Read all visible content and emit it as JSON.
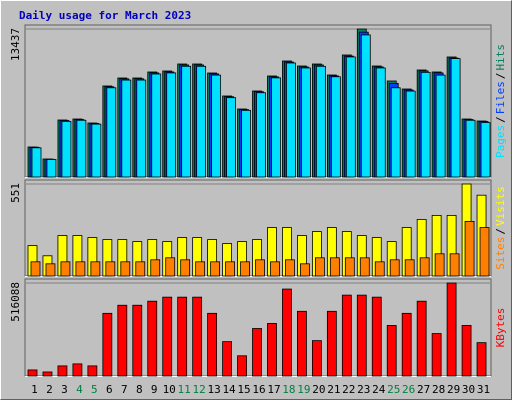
{
  "chart_data": {
    "type": "bar",
    "title": "Daily usage for March 2023",
    "categories": [
      "1",
      "2",
      "3",
      "4",
      "5",
      "6",
      "7",
      "8",
      "9",
      "10",
      "11",
      "12",
      "13",
      "14",
      "15",
      "16",
      "17",
      "18",
      "19",
      "20",
      "21",
      "22",
      "23",
      "24",
      "25",
      "26",
      "27",
      "28",
      "29",
      "30",
      "31"
    ],
    "category_colors": [
      "#000000",
      "#000000",
      "#000000",
      "#008040",
      "#008040",
      "#000000",
      "#000000",
      "#000000",
      "#000000",
      "#000000",
      "#008040",
      "#008040",
      "#000000",
      "#000000",
      "#000000",
      "#000000",
      "#000000",
      "#008040",
      "#008040",
      "#000000",
      "#000000",
      "#000000",
      "#000000",
      "#000000",
      "#008040",
      "#008040",
      "#000000",
      "#000000",
      "#000000",
      "#000000",
      "#000000"
    ],
    "panels": [
      {
        "ylim": [
          0,
          13437
        ],
        "yticks": [
          13437
        ],
        "series": [
          {
            "name": "Hits",
            "color": "#00805c",
            "values": [
              2724,
              1634,
              5176,
              5266,
              4903,
              8263,
              8989,
              8989,
              9534,
              9625,
              10260,
              10260,
              9443,
              7355,
              6174,
              7809,
              9171,
              10533,
              10079,
              10260,
              9262,
              11078,
              13437,
              10079,
              8717,
              7990,
              9716,
              9534,
              10896,
              5266,
              5085
            ]
          },
          {
            "name": "Files",
            "color": "#0040ff",
            "values": [
              2700,
              1620,
              5130,
              5220,
              4860,
              8190,
              8910,
              8910,
              9450,
              9540,
              10170,
              10170,
              9360,
              7290,
              6120,
              7740,
              9090,
              10440,
              9990,
              10170,
              9180,
              10980,
              13150,
              9990,
              8500,
              7900,
              9630,
              9450,
              10800,
              5220,
              5040
            ]
          },
          {
            "name": "Pages",
            "color": "#00e0ff",
            "values": [
              2650,
              1590,
              5050,
              5150,
              4800,
              8100,
              8800,
              8800,
              9350,
              9450,
              10050,
              10050,
              9250,
              7200,
              6050,
              7650,
              9000,
              10350,
              9900,
              10050,
              9100,
              10900,
              12900,
              9900,
              8100,
              7800,
              9500,
              9250,
              10750,
              5150,
              4950
            ]
          }
        ]
      },
      {
        "ylim": [
          0,
          551
        ],
        "yticks": [
          551
        ],
        "series": [
          {
            "name": "Visits",
            "color": "#ffff00",
            "values": [
              182,
              121,
              242,
              242,
              230,
              218,
              218,
              206,
              218,
              206,
              230,
              230,
              218,
              194,
              206,
              218,
              290,
              290,
              242,
              266,
              290,
              266,
              242,
              230,
              206,
              290,
              339,
              363,
              363,
              551,
              484
            ]
          },
          {
            "name": "Sites",
            "color": "#ff8000",
            "values": [
              85,
              73,
              85,
              85,
              85,
              85,
              85,
              85,
              97,
              109,
              97,
              85,
              85,
              85,
              85,
              97,
              85,
              97,
              73,
              109,
              109,
              109,
              109,
              85,
              97,
              97,
              109,
              133,
              133,
              327,
              290
            ]
          }
        ]
      },
      {
        "ylim": [
          0,
          516088
        ],
        "yticks": [
          516088
        ],
        "series": [
          {
            "name": "KBytes",
            "color": "#ff0000",
            "values": [
              33660,
              22440,
              56100,
              67320,
              56100,
              347820,
              392700,
              392700,
              415140,
              437580,
              437580,
              437580,
              347820,
              190740,
              112200,
              263670,
              291720,
              482460,
              359040,
              196350,
              359040,
              448800,
              448800,
              437580,
              280500,
              347820,
              415140,
              235620,
              516088,
              280500,
              185130
            ]
          }
        ]
      }
    ]
  }
}
